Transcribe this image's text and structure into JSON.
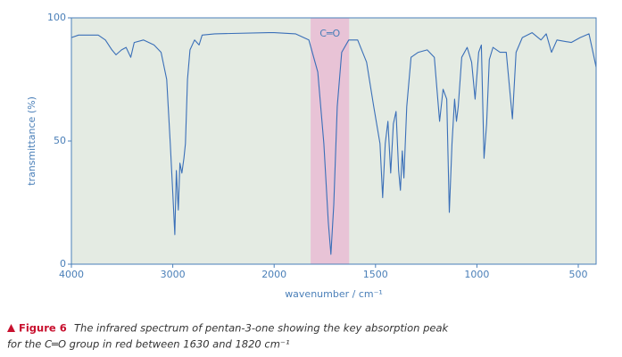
{
  "chart_data": {
    "type": "line",
    "x_label": "wavenumber / cm⁻¹",
    "y_label": "transmittance (%)",
    "x": [
      4000,
      3930,
      3735,
      3665,
      3600,
      3560,
      3505,
      3460,
      3415,
      3380,
      3290,
      3185,
      3115,
      3060,
      3025,
      3000,
      2980,
      2965,
      2945,
      2930,
      2910,
      2890,
      2875,
      2855,
      2830,
      2785,
      2740,
      2710,
      2585,
      2055,
      2000,
      1895,
      1829,
      1785,
      1755,
      1733,
      1720,
      1706,
      1689,
      1667,
      1632,
      1588,
      1544,
      1509,
      1478,
      1465,
      1452,
      1439,
      1425,
      1412,
      1399,
      1386,
      1377,
      1368,
      1360,
      1346,
      1325,
      1289,
      1245,
      1210,
      1184,
      1167,
      1149,
      1136,
      1123,
      1110,
      1101,
      1092,
      1075,
      1048,
      1026,
      1009,
      991,
      978,
      965,
      952,
      939,
      921,
      886,
      855,
      825,
      807,
      776,
      728,
      684,
      658,
      632,
      605,
      535,
      491,
      447,
      430,
      412
    ],
    "values": [
      92,
      93,
      93,
      91,
      87,
      85,
      87,
      88,
      84,
      90,
      91,
      89,
      86,
      75,
      49,
      29,
      12,
      38,
      22,
      41,
      37,
      43,
      49,
      75,
      87,
      91,
      89,
      93,
      93.5,
      94,
      94,
      93.5,
      91,
      78,
      49,
      17,
      4,
      24,
      64,
      86,
      91,
      91,
      82,
      64,
      49,
      27,
      49,
      58,
      37,
      57,
      62,
      38,
      30,
      46,
      35,
      64,
      84,
      86,
      87,
      84,
      58,
      71,
      67,
      21,
      49,
      67,
      58,
      64,
      84,
      88,
      82,
      67,
      86,
      89,
      43,
      57,
      83,
      88,
      86,
      86,
      59,
      86,
      92,
      94,
      91,
      93.5,
      86,
      91,
      90,
      92,
      93.5,
      87,
      80
    ],
    "color": "#3a6fb8",
    "xlim": [
      4000,
      412
    ],
    "xticks": [
      4000,
      3000,
      2000,
      1500,
      1000,
      500
    ],
    "x_expand_below": 2000,
    "x_expand_factor": 2,
    "ylim": [
      0,
      100
    ],
    "yticks": [
      0,
      50,
      100
    ],
    "highlight": {
      "from": 1820,
      "to": 1630,
      "label": "C═O",
      "color": "#e8c3d6"
    },
    "caption": {
      "label": "Figure 6",
      "line1": "The infrared spectrum of pentan-3-one showing the key absorption peak",
      "line2": "for the C═O group in red between 1630 and 1820 cm⁻¹"
    }
  }
}
